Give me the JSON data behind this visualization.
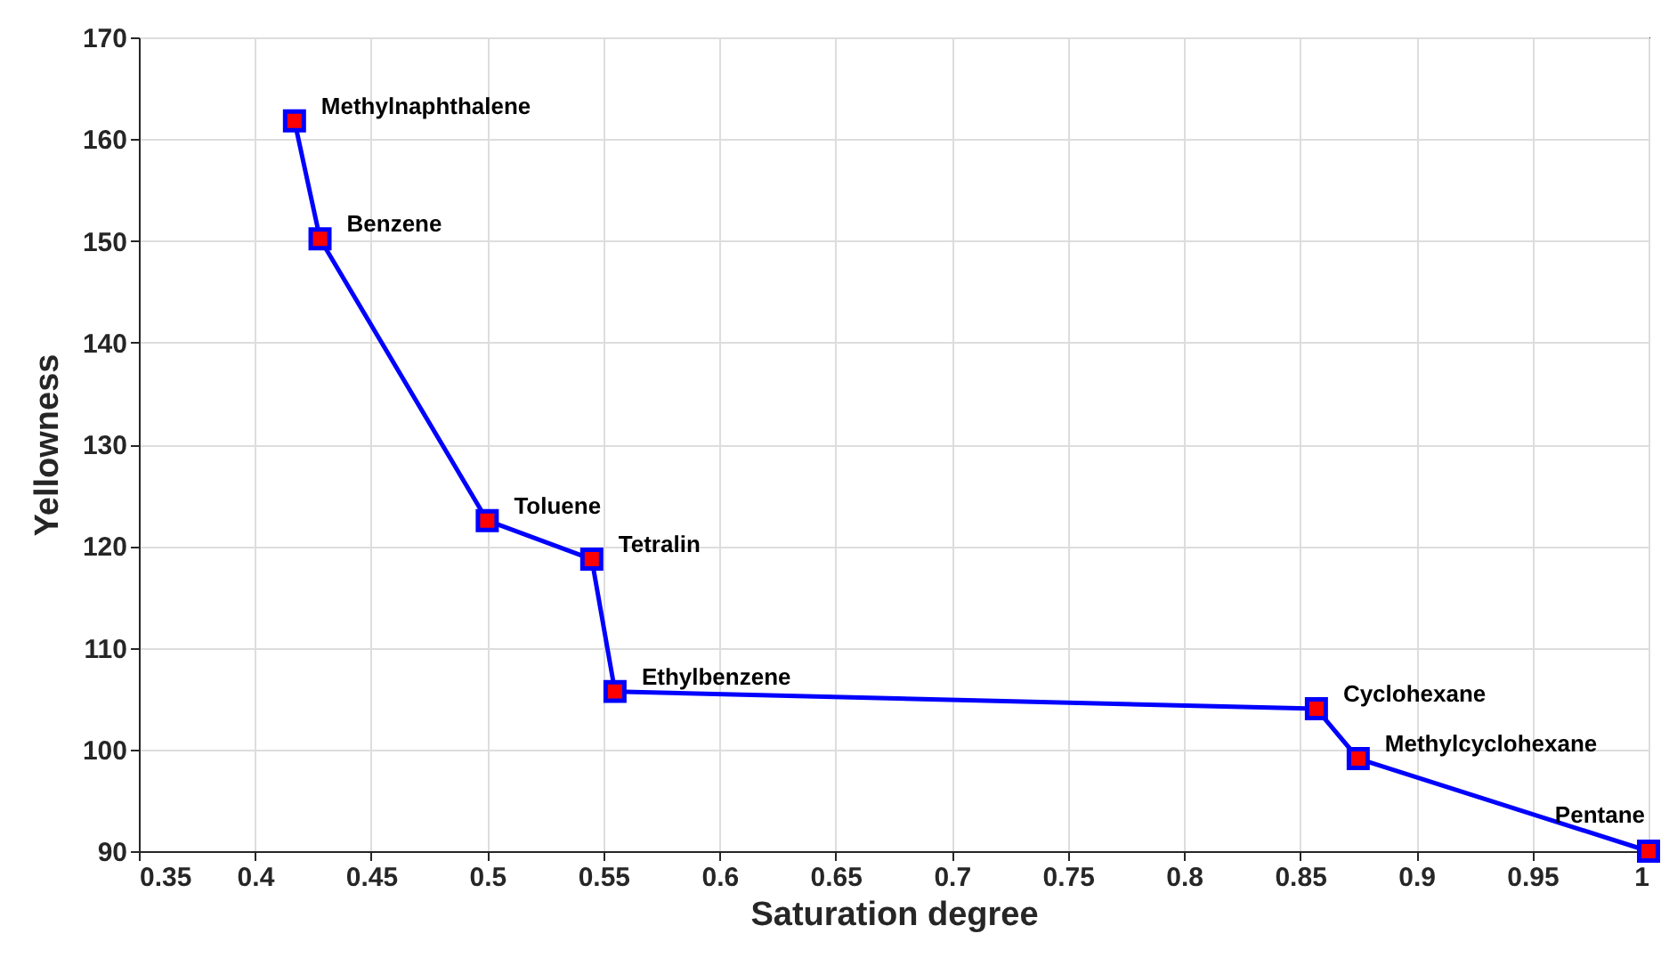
{
  "chart_data": {
    "type": "line",
    "xlabel": "Saturation degree",
    "ylabel": "Yellowness",
    "x": [
      0.417,
      0.428,
      0.5,
      0.545,
      0.555,
      0.857,
      0.875,
      1.0
    ],
    "series": [
      {
        "color": "#0000ff",
        "values": [
          161.8,
          150.2,
          122.5,
          118.7,
          105.7,
          104.0,
          99.1,
          90.0
        ]
      }
    ],
    "xlim": [
      0.35,
      1
    ],
    "xticks": [
      0.35,
      0.4,
      0.45,
      0.5,
      0.55,
      0.6,
      0.65,
      0.7,
      0.75,
      0.8,
      0.85,
      0.9,
      0.95,
      1
    ],
    "ylim": [
      90,
      170
    ],
    "yticks": [
      90,
      100,
      110,
      120,
      130,
      140,
      150,
      160,
      170
    ],
    "grid": true,
    "marker": "square",
    "line_style": "solid",
    "annotations": [
      {
        "text": "Methylnaphthalene",
        "x": 0.417,
        "y": 161.8
      },
      {
        "text": "Benzene",
        "x": 0.428,
        "y": 150.2
      },
      {
        "text": "Toluene",
        "x": 0.5,
        "y": 122.5
      },
      {
        "text": "Tetralin",
        "x": 0.545,
        "y": 118.7
      },
      {
        "text": "Ethylbenzene",
        "x": 0.555,
        "y": 105.7
      },
      {
        "text": "Cyclohexane",
        "x": 0.857,
        "y": 104.0
      },
      {
        "text": "Methylcyclohexane",
        "x": 0.875,
        "y": 99.1
      },
      {
        "text": "Pentane",
        "x": 1.0,
        "y": 90.0
      }
    ]
  }
}
